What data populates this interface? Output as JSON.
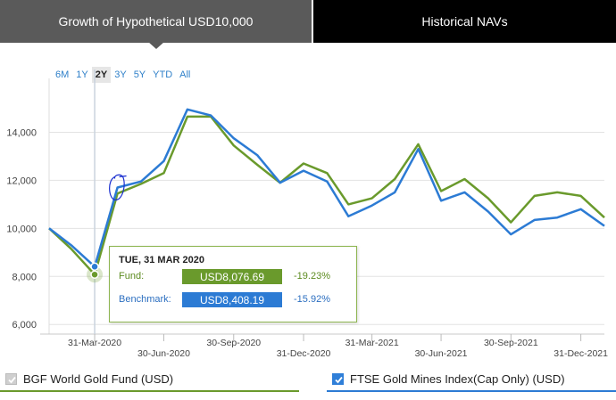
{
  "tabs": {
    "growth_label": "Growth of Hypothetical USD10,000",
    "navs_label": "Historical NAVs"
  },
  "ranges": [
    "6M",
    "1Y",
    "2Y",
    "3Y",
    "5Y",
    "YTD",
    "All"
  ],
  "active_range": "2Y",
  "colors": {
    "fund": "#6a9a2c",
    "benchmark": "#2c7bd4",
    "tooltip_fund": "#6a9a2c",
    "tooltip_bench": "#2c7bd4"
  },
  "tooltip": {
    "date": "TUE, 31 MAR 2020",
    "fund_label": "Fund:",
    "fund_value": "USD8,076.69",
    "fund_pct": "-19.23%",
    "bench_label": "Benchmark:",
    "bench_value": "USD8,408.19",
    "bench_pct": "-15.92%"
  },
  "legend": {
    "fund": "BGF World Gold Fund (USD)",
    "benchmark": "FTSE Gold Mines Index(Cap Only) (USD)"
  },
  "chart_data": {
    "type": "line",
    "title": "Growth of Hypothetical USD10,000",
    "ylim": [
      5600,
      15500
    ],
    "yticks": [
      6000,
      8000,
      10000,
      12000,
      14000
    ],
    "ytick_labels": [
      "6,000",
      "8,000",
      "10,000",
      "12,000",
      "14,000"
    ],
    "xlim": [
      "2020-01-31",
      "2022-01-31"
    ],
    "xticks": [
      {
        "date": "2020-03-31",
        "label": "31-Mar-2020",
        "row": 0
      },
      {
        "date": "2020-06-30",
        "label": "30-Jun-2020",
        "row": 1
      },
      {
        "date": "2020-09-30",
        "label": "30-Sep-2020",
        "row": 0
      },
      {
        "date": "2020-12-31",
        "label": "31-Dec-2020",
        "row": 1
      },
      {
        "date": "2021-03-31",
        "label": "31-Mar-2021",
        "row": 0
      },
      {
        "date": "2021-06-30",
        "label": "30-Jun-2021",
        "row": 1
      },
      {
        "date": "2021-09-30",
        "label": "30-Sep-2021",
        "row": 0
      },
      {
        "date": "2021-12-31",
        "label": "31-Dec-2021",
        "row": 1
      }
    ],
    "x": [
      "2020-01-31",
      "2020-02-29",
      "2020-03-31",
      "2020-04-30",
      "2020-05-31",
      "2020-06-30",
      "2020-07-31",
      "2020-08-31",
      "2020-09-30",
      "2020-10-31",
      "2020-11-30",
      "2020-12-31",
      "2021-01-31",
      "2021-02-28",
      "2021-03-31",
      "2021-04-30",
      "2021-05-31",
      "2021-06-30",
      "2021-07-31",
      "2021-08-31",
      "2021-09-30",
      "2021-10-31",
      "2021-11-30",
      "2021-12-31",
      "2022-01-31"
    ],
    "series": [
      {
        "name": "BGF World Gold Fund (USD)",
        "values": [
          10000,
          9150,
          8077,
          11450,
          11850,
          12300,
          14650,
          14650,
          13450,
          12650,
          11900,
          12700,
          12300,
          11000,
          11250,
          12050,
          13500,
          11550,
          12050,
          11250,
          10250,
          11350,
          11500,
          11350,
          10450
        ]
      },
      {
        "name": "FTSE Gold Mines Index(Cap Only) (USD)",
        "values": [
          10000,
          9300,
          8408,
          11700,
          11950,
          12800,
          14950,
          14700,
          13750,
          13050,
          11900,
          12400,
          11950,
          10500,
          10950,
          11500,
          13300,
          11150,
          11500,
          10700,
          9750,
          10350,
          10450,
          10800,
          10100
        ]
      }
    ],
    "hover_index": 2,
    "annotation": "hand-drawn blue scribble near Apr-2020"
  }
}
